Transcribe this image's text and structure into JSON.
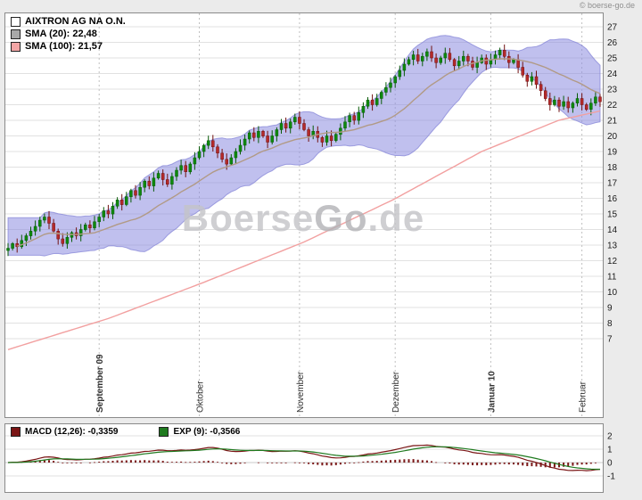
{
  "page": {
    "copyright": "© boerse-go.de"
  },
  "chart_data": [
    {
      "id": "price",
      "type": "candlestick",
      "instrument": "AIXTRON AG NA O.N.",
      "legend": {
        "series": [
          {
            "swatch": "#ffffff",
            "text": "AIXTRON AG NA O.N."
          },
          {
            "swatch": "#a8a8a8",
            "text": "SMA (20): 22,48"
          },
          {
            "swatch": "#f4a6a6",
            "text": "SMA (100): 21,57"
          }
        ]
      },
      "watermark": {
        "part1": "Boerse",
        "part2": "Go",
        "part3": ".de"
      },
      "y_axis": {
        "min": 7,
        "max": 27,
        "ticks": [
          27,
          26,
          25,
          24,
          23,
          22,
          21,
          20,
          19,
          18,
          17,
          16,
          15,
          14,
          13,
          12,
          11,
          10,
          9,
          8,
          7
        ]
      },
      "x_axis": {
        "months": [
          {
            "label": "September 09",
            "index": 20,
            "bold": true
          },
          {
            "label": "Oktober",
            "index": 42,
            "bold": false
          },
          {
            "label": "November",
            "index": 64,
            "bold": false
          },
          {
            "label": "Dezember",
            "index": 85,
            "bold": false
          },
          {
            "label": "Januar 10",
            "index": 106,
            "bold": true
          },
          {
            "label": "Februar",
            "index": 126,
            "bold": false
          }
        ]
      },
      "closes": [
        12.8,
        13.1,
        12.9,
        13.3,
        13.6,
        13.9,
        14.2,
        14.6,
        14.8,
        14.4,
        13.9,
        13.4,
        13.1,
        13.5,
        13.8,
        13.6,
        14.0,
        14.3,
        14.1,
        14.5,
        14.8,
        15.2,
        15.0,
        15.5,
        15.9,
        15.6,
        16.1,
        16.5,
        16.2,
        16.7,
        17.1,
        16.8,
        17.3,
        17.6,
        17.2,
        16.9,
        17.4,
        17.8,
        18.1,
        17.7,
        18.2,
        18.6,
        19.0,
        19.4,
        19.7,
        19.3,
        18.9,
        18.5,
        18.2,
        18.6,
        19.0,
        19.4,
        19.8,
        20.2,
        19.9,
        20.3,
        20.0,
        19.6,
        20.0,
        20.4,
        20.8,
        20.5,
        20.9,
        21.2,
        20.8,
        20.4,
        20.0,
        20.3,
        19.9,
        19.6,
        20.0,
        19.7,
        20.1,
        20.5,
        20.9,
        21.3,
        21.0,
        21.5,
        21.9,
        22.3,
        22.0,
        22.4,
        22.8,
        23.1,
        23.4,
        23.8,
        24.2,
        24.6,
        24.9,
        25.2,
        24.8,
        25.1,
        25.4,
        25.0,
        24.7,
        25.0,
        25.3,
        24.9,
        24.5,
        24.8,
        25.1,
        24.8,
        24.4,
        24.7,
        25.0,
        24.6,
        24.9,
        25.2,
        25.5,
        25.1,
        24.7,
        24.9,
        24.4,
        23.9,
        23.5,
        23.8,
        23.3,
        22.9,
        22.4,
        22.0,
        22.3,
        21.9,
        22.2,
        21.8,
        22.1,
        22.4,
        22.0,
        21.7,
        22.1,
        22.5,
        22.2
      ],
      "sma20": {
        "period": 20,
        "last_value": "22,48",
        "color": "#b19a86"
      },
      "sma100": {
        "last_value": "21,57",
        "color": "#f2a0a0",
        "anchors": [
          [
            0,
            6.3
          ],
          [
            0.17,
            8.3
          ],
          [
            0.33,
            10.6
          ],
          [
            0.5,
            13.2
          ],
          [
            0.65,
            15.9
          ],
          [
            0.8,
            19.0
          ],
          [
            0.93,
            21.0
          ],
          [
            1,
            21.6
          ]
        ]
      },
      "band": {
        "period": 20,
        "stdev_mult": 2,
        "fill": "#8d8de0",
        "stroke": "#8080d6"
      },
      "candle_colors": {
        "up": "#0e8a0e",
        "up_stroke": "#085a08",
        "down": "#b52a2a",
        "down_stroke": "#701010"
      }
    },
    {
      "id": "macd",
      "type": "macd",
      "legend": {
        "series": [
          {
            "swatch": "#7a1515",
            "text": "MACD (12,26): -0,3359"
          },
          {
            "swatch": "#1f7a1f",
            "text": "EXP (9): -0,3566"
          }
        ]
      },
      "y_axis": {
        "ticks": [
          2,
          1,
          0,
          -1
        ]
      },
      "params": {
        "fast": 12,
        "slow": 26,
        "signal": 9
      },
      "colors": {
        "macd": "#7a1515",
        "signal": "#1f7a1f",
        "histogram": "#7b1818"
      }
    }
  ]
}
